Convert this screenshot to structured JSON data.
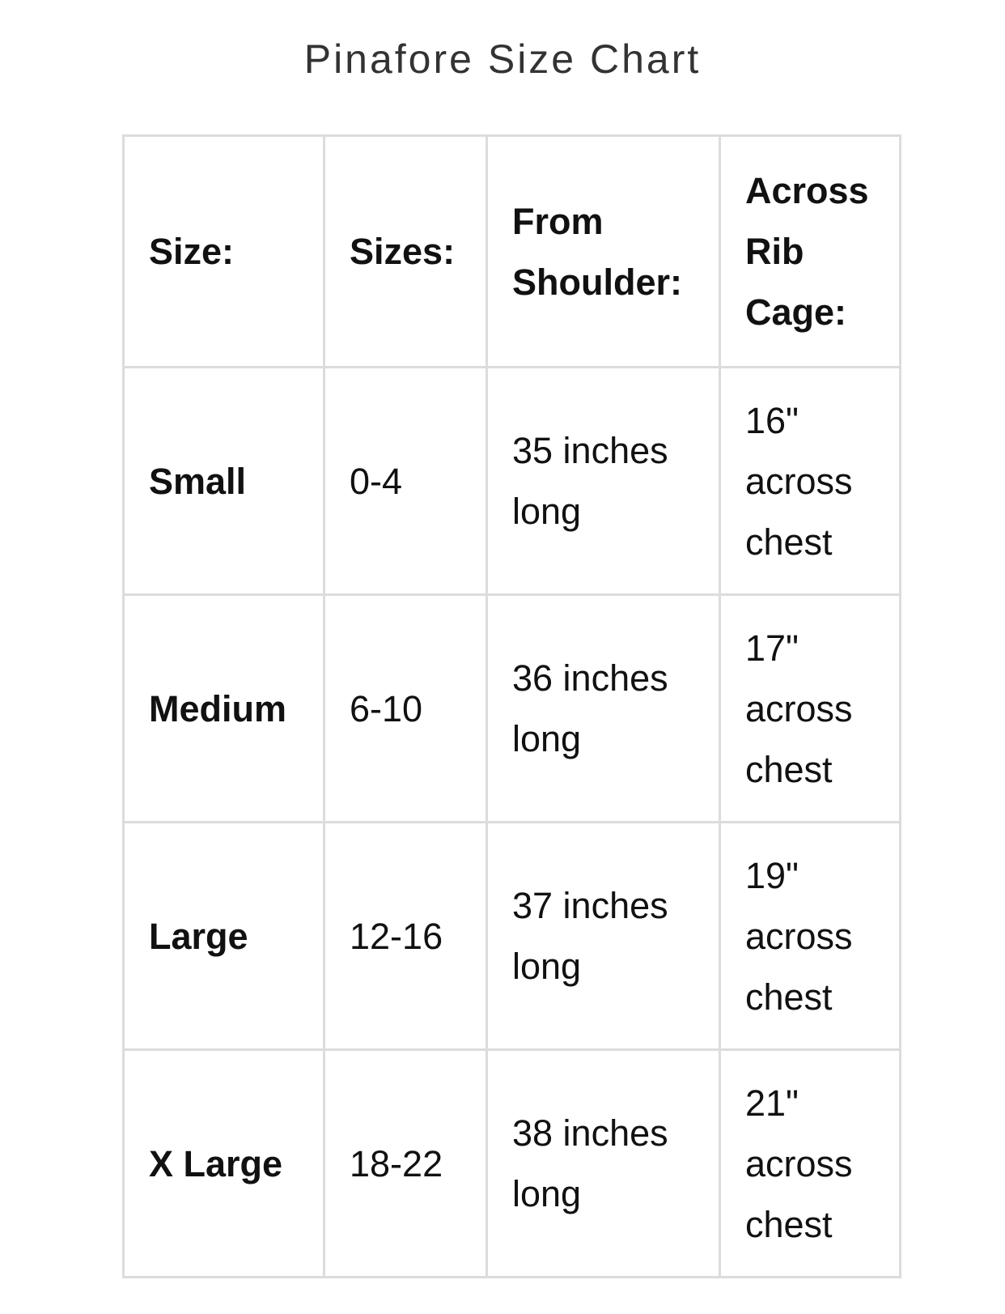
{
  "title": "Pinafore Size Chart",
  "headers": [
    "Size:",
    "Sizes:",
    "From Shoulder:",
    "Across Rib Cage:"
  ],
  "rows": [
    {
      "size": "Small",
      "sizes": "0-4",
      "length": "35 inches long",
      "chest": "16\" across chest"
    },
    {
      "size": "Medium",
      "sizes": "6-10",
      "length": "36 inches long",
      "chest": "17\" across chest"
    },
    {
      "size": "Large",
      "sizes": "12-16",
      "length": "37 inches long",
      "chest": "19\" across chest"
    },
    {
      "size": "X Large",
      "sizes": "18-22",
      "length": "38 inches long",
      "chest": "21\" across chest"
    }
  ]
}
